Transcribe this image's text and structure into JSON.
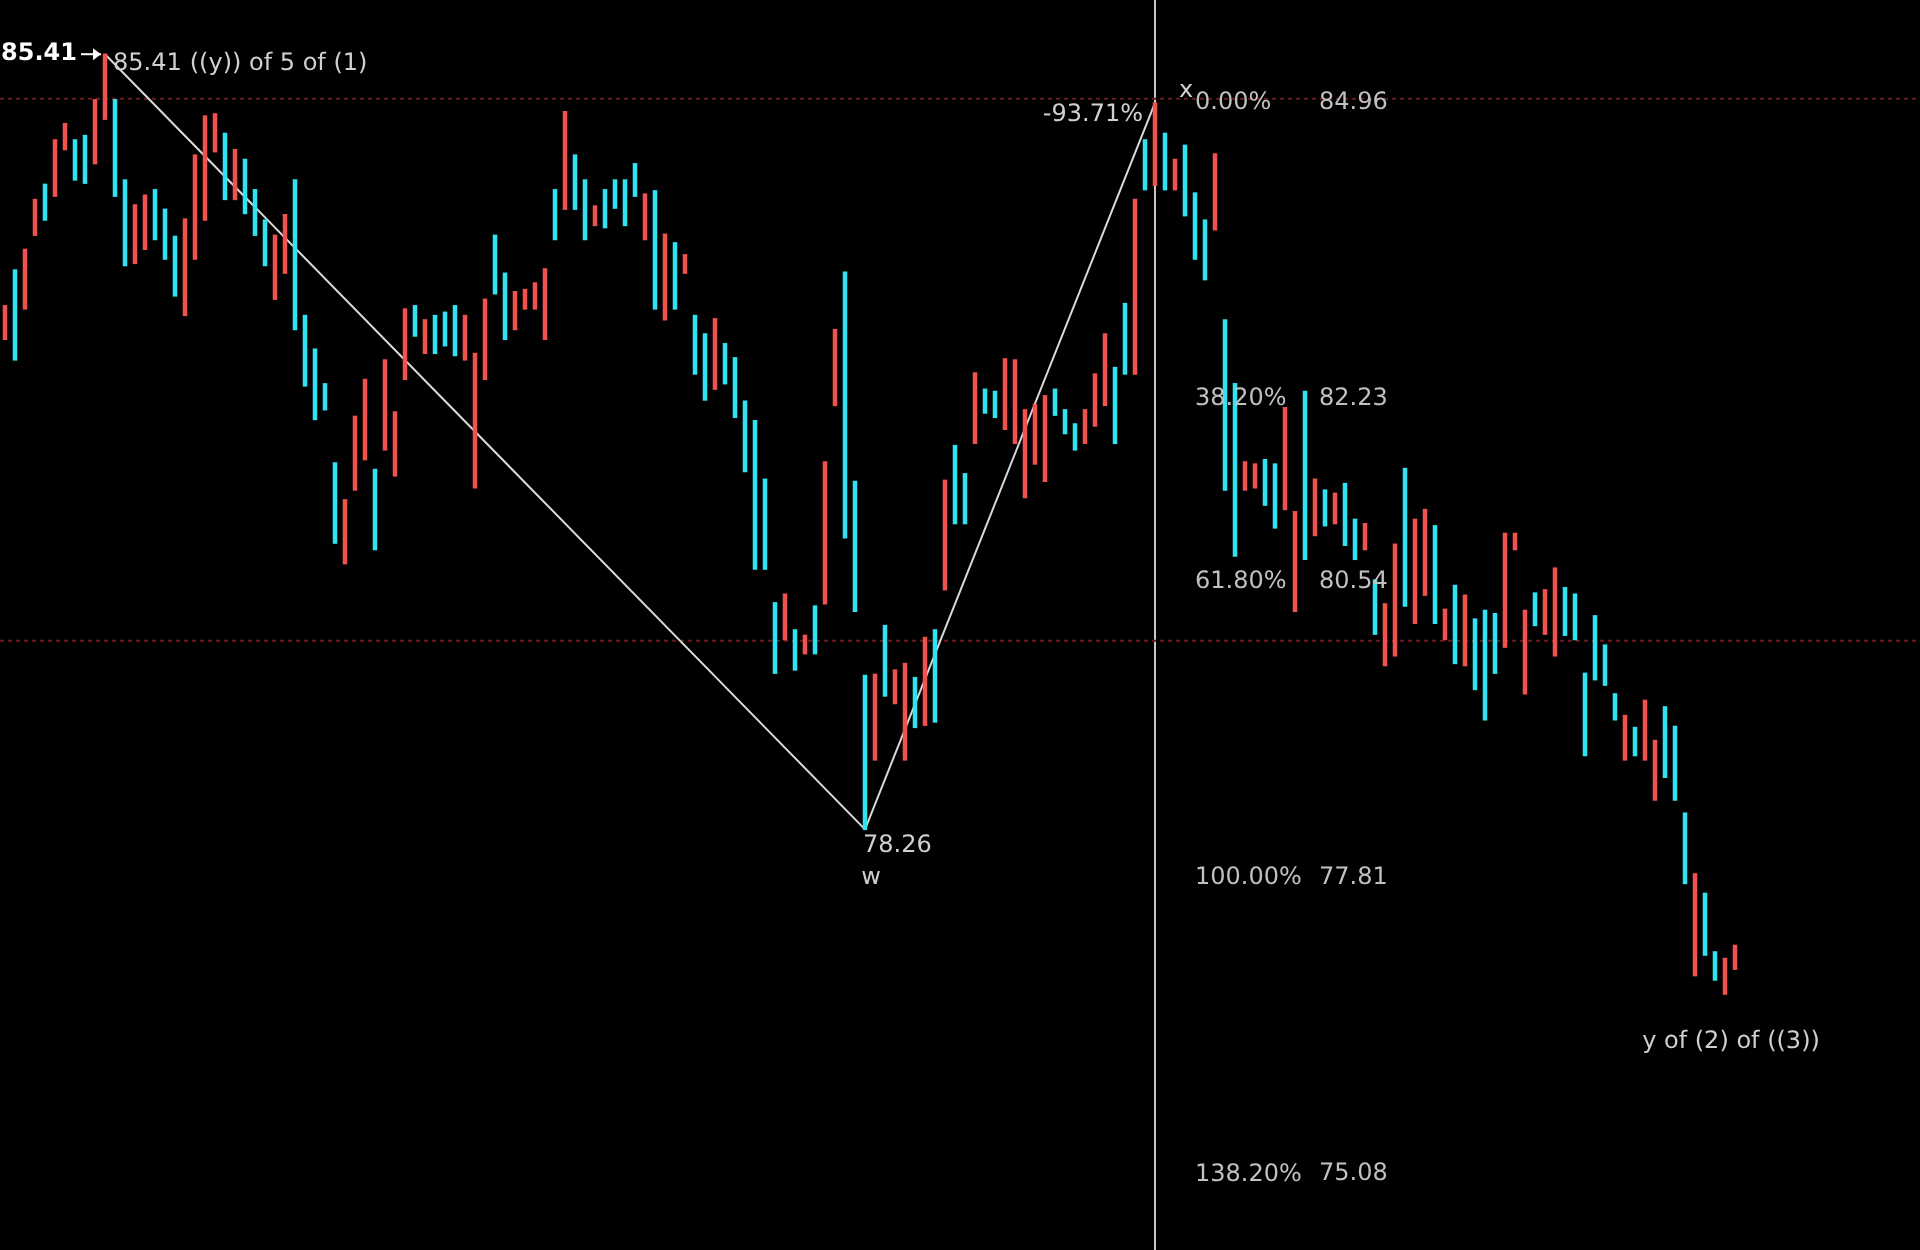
{
  "chart_data": {
    "type": "bar",
    "categories": [
      null,
      null,
      null,
      null,
      null,
      null,
      null,
      null,
      null,
      null,
      null,
      null,
      null,
      null,
      null,
      null,
      null,
      null,
      null,
      null,
      null,
      null,
      null,
      null,
      null,
      null,
      null,
      null,
      null,
      null,
      null,
      null,
      null,
      null,
      null,
      null,
      null,
      null,
      null,
      null,
      null,
      null,
      null,
      null,
      null,
      null,
      null,
      null,
      null,
      null,
      null,
      null,
      null,
      null,
      null,
      null,
      null,
      null,
      null,
      null,
      null,
      null,
      null,
      null,
      null,
      null,
      null,
      null,
      null,
      null,
      null,
      null,
      null,
      null,
      null,
      null,
      null,
      null,
      null,
      null,
      null,
      null,
      null,
      null,
      null,
      null,
      null,
      null,
      null,
      null,
      null,
      null,
      null,
      null,
      null,
      null,
      null,
      null,
      null,
      null,
      null,
      null,
      null,
      null,
      null,
      null,
      null,
      null,
      null,
      null,
      null,
      null,
      null,
      null,
      null,
      null,
      null,
      null,
      null,
      null,
      null,
      null,
      null,
      null,
      null,
      null,
      null,
      null,
      null,
      null,
      null,
      null,
      null,
      null,
      null,
      null,
      null,
      null,
      null,
      null,
      null,
      null,
      null,
      null,
      null,
      null,
      null,
      null,
      null,
      null,
      null,
      null,
      null,
      null,
      null,
      null,
      null,
      null,
      null,
      null,
      null,
      null,
      null,
      null,
      null,
      null,
      null,
      null,
      null,
      null,
      null,
      null,
      null,
      null,
      null,
      null,
      null,
      null,
      null,
      null,
      null,
      null,
      null,
      null,
      null,
      null,
      null,
      null,
      null,
      null,
      null,
      null
    ],
    "series": [
      {
        "base": [
          82.78,
          82.59,
          83.06,
          83.74,
          83.88,
          84.1,
          84.53,
          84.25,
          84.22,
          84.4,
          84.81,
          84.1,
          83.46,
          83.48,
          83.61,
          83.7,
          83.52,
          83.18,
          83.0,
          83.52,
          83.88,
          84.51,
          84.07,
          84.07,
          83.94,
          83.74,
          83.46,
          83.15,
          83.39,
          82.87,
          82.35,
          82.04,
          82.13,
          80.9,
          80.71,
          81.39,
          81.67,
          80.84,
          81.76,
          81.52,
          82.41,
          82.81,
          82.65,
          82.65,
          82.72,
          82.63,
          82.59,
          81.41,
          82.41,
          83.2,
          82.78,
          82.87,
          83.06,
          83.06,
          82.78,
          83.7,
          83.98,
          83.98,
          83.7,
          83.83,
          83.81,
          83.99,
          83.83,
          84.1,
          83.7,
          83.06,
          82.96,
          83.06,
          83.39,
          82.46,
          82.22,
          82.32,
          82.37,
          82.06,
          81.56,
          80.66,
          80.66,
          79.7,
          80.01,
          79.73,
          79.88,
          79.88,
          80.34,
          82.17,
          80.95,
          80.27,
          78.26,
          78.9,
          79.49,
          79.42,
          78.9,
          79.2,
          79.22,
          79.25,
          80.47,
          81.08,
          81.08,
          81.82,
          82.1,
          82.06,
          81.95,
          81.82,
          81.32,
          81.63,
          81.47,
          82.08,
          81.91,
          81.76,
          81.82,
          81.98,
          82.17,
          81.82,
          82.46,
          82.46,
          84.16,
          84.2,
          84.16,
          84.16,
          83.92,
          83.52,
          83.33,
          83.79,
          81.39,
          80.78,
          81.39,
          81.41,
          81.25,
          81.04,
          81.21,
          80.27,
          80.75,
          80.97,
          81.06,
          81.08,
          80.88,
          80.75,
          80.84,
          80.06,
          79.77,
          79.86,
          80.32,
          80.16,
          80.42,
          80.16,
          80.01,
          79.79,
          79.77,
          79.55,
          79.27,
          79.7,
          79.94,
          80.84,
          79.51,
          80.14,
          80.06,
          79.86,
          80.05,
          80.01,
          78.94,
          79.64,
          79.59,
          79.27,
          78.9,
          78.94,
          78.9,
          78.53,
          78.74,
          78.53,
          77.76,
          76.91,
          77.1,
          76.87,
          76.74,
          76.97,
          null,
          null,
          null,
          null,
          null,
          null,
          null,
          null,
          null,
          null,
          null,
          null,
          null,
          null,
          null,
          null,
          null,
          null
        ],
        "values": [
          0.31,
          0.83,
          0.55,
          0.33,
          0.33,
          0.52,
          0.24,
          0.37,
          0.44,
          0.59,
          0.6,
          0.89,
          0.79,
          0.54,
          0.5,
          0.46,
          0.46,
          0.55,
          0.89,
          0.96,
          0.96,
          0.35,
          0.61,
          0.46,
          0.5,
          0.42,
          0.42,
          0.59,
          0.54,
          1.38,
          0.65,
          0.65,
          0.24,
          0.74,
          0.59,
          0.68,
          0.74,
          0.74,
          0.83,
          0.59,
          0.65,
          0.28,
          0.31,
          0.35,
          0.31,
          0.46,
          0.41,
          1.24,
          0.74,
          0.54,
          0.61,
          0.35,
          0.18,
          0.24,
          0.65,
          0.46,
          0.9,
          0.5,
          0.55,
          0.18,
          0.35,
          0.26,
          0.42,
          0.3,
          0.42,
          1.09,
          0.79,
          0.61,
          0.17,
          0.54,
          0.61,
          0.65,
          0.37,
          0.55,
          0.65,
          1.37,
          0.83,
          0.65,
          0.42,
          0.37,
          0.17,
          0.44,
          1.31,
          0.7,
          2.45,
          1.2,
          1.42,
          0.79,
          0.65,
          0.31,
          0.89,
          0.46,
          0.81,
          0.85,
          1.01,
          0.72,
          0.46,
          0.65,
          0.22,
          0.24,
          0.65,
          0.77,
          0.81,
          0.55,
          0.79,
          0.24,
          0.22,
          0.24,
          0.31,
          0.48,
          0.66,
          0.7,
          0.65,
          1.61,
          0.46,
          0.76,
          0.52,
          0.28,
          0.65,
          0.61,
          0.55,
          0.7,
          1.57,
          1.59,
          0.26,
          0.22,
          0.42,
          0.59,
          0.94,
          0.92,
          1.55,
          0.52,
          0.33,
          0.28,
          0.57,
          0.37,
          0.24,
          0.5,
          0.57,
          1.03,
          1.27,
          0.96,
          0.79,
          0.9,
          0.28,
          0.72,
          0.65,
          0.65,
          1.01,
          0.55,
          1.05,
          0.15,
          0.77,
          0.3,
          0.41,
          0.81,
          0.44,
          0.42,
          0.76,
          0.59,
          0.37,
          0.24,
          0.41,
          0.26,
          0.55,
          0.55,
          0.65,
          0.68,
          0.65,
          0.94,
          0.57,
          0.26,
          0.33,
          0.22,
          null,
          null,
          null,
          null,
          null,
          null,
          null,
          null,
          null,
          null,
          null,
          null,
          null,
          null,
          null,
          null,
          null,
          null
        ],
        "colors": [
          "#f0524d",
          "#2fe3f2",
          "#f0524d",
          "#f0524d",
          "#2fe3f2",
          "#f0524d",
          "#f0524d",
          "#2fe3f2",
          "#2fe3f2",
          "#f0524d",
          "#f0524d",
          "#2fe3f2",
          "#2fe3f2",
          "#f0524d",
          "#f0524d",
          "#2fe3f2",
          "#2fe3f2",
          "#2fe3f2",
          "#f0524d",
          "#f0524d",
          "#f0524d",
          "#f0524d",
          "#2fe3f2",
          "#f0524d",
          "#2fe3f2",
          "#2fe3f2",
          "#2fe3f2",
          "#f0524d",
          "#f0524d",
          "#2fe3f2",
          "#2fe3f2",
          "#2fe3f2",
          "#2fe3f2",
          "#2fe3f2",
          "#f0524d",
          "#f0524d",
          "#f0524d",
          "#2fe3f2",
          "#f0524d",
          "#f0524d",
          "#f0524d",
          "#2fe3f2",
          "#f0524d",
          "#2fe3f2",
          "#2fe3f2",
          "#2fe3f2",
          "#f0524d",
          "#f0524d",
          "#f0524d",
          "#2fe3f2",
          "#2fe3f2",
          "#f0524d",
          "#f0524d",
          "#f0524d",
          "#f0524d",
          "#2fe3f2",
          "#f0524d",
          "#2fe3f2",
          "#2fe3f2",
          "#f0524d",
          "#2fe3f2",
          "#2fe3f2",
          "#2fe3f2",
          "#2fe3f2",
          "#f0524d",
          "#2fe3f2",
          "#f0524d",
          "#2fe3f2",
          "#f0524d",
          "#2fe3f2",
          "#2fe3f2",
          "#f0524d",
          "#2fe3f2",
          "#2fe3f2",
          "#2fe3f2",
          "#2fe3f2",
          "#2fe3f2",
          "#2fe3f2",
          "#f0524d",
          "#2fe3f2",
          "#f0524d",
          "#2fe3f2",
          "#f0524d",
          "#f0524d",
          "#2fe3f2",
          "#2fe3f2",
          "#2fe3f2",
          "#f0524d",
          "#2fe3f2",
          "#f0524d",
          "#f0524d",
          "#2fe3f2",
          "#f0524d",
          "#2fe3f2",
          "#f0524d",
          "#2fe3f2",
          "#2fe3f2",
          "#f0524d",
          "#2fe3f2",
          "#2fe3f2",
          "#f0524d",
          "#f0524d",
          "#f0524d",
          "#f0524d",
          "#f0524d",
          "#2fe3f2",
          "#2fe3f2",
          "#2fe3f2",
          "#f0524d",
          "#f0524d",
          "#f0524d",
          "#2fe3f2",
          "#2fe3f2",
          "#f0524d",
          "#2fe3f2",
          "#f0524d",
          "#2fe3f2",
          "#f0524d",
          "#2fe3f2",
          "#2fe3f2",
          "#2fe3f2",
          "#f0524d",
          "#2fe3f2",
          "#2fe3f2",
          "#f0524d",
          "#f0524d",
          "#2fe3f2",
          "#2fe3f2",
          "#f0524d",
          "#f0524d",
          "#2fe3f2",
          "#f0524d",
          "#2fe3f2",
          "#f0524d",
          "#2fe3f2",
          "#2fe3f2",
          "#f0524d",
          "#2fe3f2",
          "#f0524d",
          "#f0524d",
          "#2fe3f2",
          "#f0524d",
          "#f0524d",
          "#2fe3f2",
          "#f0524d",
          "#2fe3f2",
          "#f0524d",
          "#2fe3f2",
          "#2fe3f2",
          "#2fe3f2",
          "#f0524d",
          "#f0524d",
          "#f0524d",
          "#2fe3f2",
          "#f0524d",
          "#f0524d",
          "#2fe3f2",
          "#2fe3f2",
          "#2fe3f2",
          "#2fe3f2",
          "#2fe3f2",
          "#2fe3f2",
          "#f0524d",
          "#2fe3f2",
          "#f0524d",
          "#f0524d",
          "#2fe3f2",
          "#2fe3f2",
          "#2fe3f2",
          "#f0524d",
          "#2fe3f2",
          "#2fe3f2",
          "#f0524d",
          "#f0524d",
          null,
          null,
          null,
          null,
          null,
          null,
          null,
          null,
          null,
          null,
          null,
          null,
          null,
          null,
          null,
          null,
          null,
          null
        ]
      },
      {
        "type": "line",
        "color": "#d9d9d9",
        "values": [
          null,
          null,
          null,
          null,
          null,
          null,
          null,
          null,
          null,
          null,
          85.41,
          null,
          null,
          null,
          null,
          null,
          null,
          null,
          null,
          null,
          null,
          null,
          null,
          null,
          null,
          null,
          null,
          null,
          null,
          null,
          null,
          null,
          null,
          null,
          null,
          null,
          null,
          null,
          null,
          null,
          null,
          null,
          null,
          null,
          null,
          null,
          null,
          null,
          null,
          null,
          null,
          null,
          null,
          null,
          null,
          null,
          null,
          null,
          null,
          null,
          null,
          null,
          null,
          null,
          null,
          null,
          null,
          null,
          null,
          null,
          null,
          null,
          null,
          null,
          null,
          null,
          null,
          null,
          null,
          null,
          null,
          null,
          null,
          null,
          null,
          null,
          78.26,
          null,
          null,
          null,
          null,
          null,
          null,
          null,
          null,
          null,
          null,
          null,
          null,
          null,
          null,
          null,
          null,
          null,
          null,
          null,
          null,
          null,
          null,
          null,
          null,
          null,
          null,
          null,
          null,
          84.96,
          null,
          null,
          null,
          null,
          null,
          null,
          null,
          null,
          null,
          null,
          null,
          null,
          null,
          null,
          null,
          null,
          null,
          null,
          null,
          null,
          null,
          null,
          null,
          null,
          null,
          null,
          null,
          null,
          null,
          null,
          null,
          null,
          null,
          null,
          null,
          null,
          null,
          null,
          null,
          null,
          null,
          null,
          null,
          null,
          null,
          null,
          null,
          null,
          null,
          null,
          null,
          null,
          null,
          null,
          null,
          null,
          null,
          null,
          null,
          null,
          null,
          null,
          null,
          null,
          null,
          null,
          null,
          null,
          null,
          null,
          null,
          null,
          null,
          null,
          null,
          null
        ],
        "value_labels": [
          null,
          null,
          null,
          null,
          null,
          null,
          null,
          null,
          null,
          null,
          "85.41",
          null,
          null,
          null,
          null,
          null,
          null,
          null,
          null,
          null,
          null,
          null,
          null,
          null,
          null,
          null,
          null,
          null,
          null,
          null,
          null,
          null,
          null,
          null,
          null,
          null,
          null,
          null,
          null,
          null,
          null,
          null,
          null,
          null,
          null,
          null,
          null,
          null,
          null,
          null,
          null,
          null,
          null,
          null,
          null,
          null,
          null,
          null,
          null,
          null,
          null,
          null,
          null,
          null,
          null,
          null,
          null,
          null,
          null,
          null,
          null,
          null,
          null,
          null,
          null,
          null,
          null,
          null,
          null,
          null,
          null,
          null,
          null,
          null,
          null,
          null,
          "78.26",
          null,
          null,
          null,
          null,
          null,
          null,
          null,
          null,
          null,
          null,
          null,
          null,
          null,
          null,
          null,
          null,
          null,
          null,
          null,
          null,
          null,
          null,
          null,
          null,
          null,
          null,
          null,
          null,
          null,
          null,
          null,
          null,
          null,
          null,
          null,
          null,
          null,
          null,
          null,
          null,
          null,
          null,
          null,
          null,
          null,
          null,
          null,
          null,
          null,
          null,
          null,
          null,
          null,
          null,
          null,
          null,
          null,
          null,
          null,
          null,
          null,
          null,
          null,
          null,
          null,
          null,
          null,
          null,
          null,
          null,
          null,
          null,
          null,
          null,
          null,
          null,
          null,
          null,
          null,
          null,
          null,
          null,
          null,
          null,
          null,
          null,
          null,
          null,
          null,
          null,
          null,
          null,
          null,
          null,
          null,
          null,
          null,
          null,
          null,
          null,
          null,
          null,
          null,
          null,
          null
        ]
      }
    ],
    "ylim": [
      74.38,
      85.91
    ],
    "yticks": [
      84.96,
      82.23,
      80.54,
      77.81,
      75.08
    ],
    "y2lim": [
      147.97,
      -13.29
    ],
    "y2ticks": [
      {
        "value": 0,
        "label": "0.00%"
      },
      {
        "value": 38.2,
        "label": "38.20%"
      },
      {
        "value": 61.8,
        "label": "61.80%"
      },
      {
        "value": 100,
        "label": "100.00%"
      },
      {
        "value": 138.2,
        "label": "138.20%"
      }
    ],
    "legend": false,
    "ref_lines": [
      {
        "axis": "y",
        "value": 85,
        "color": "#6a1a1a",
        "line_style": "dotted"
      },
      {
        "axis": "y",
        "value": 80,
        "color": "#6a1a1a",
        "line_style": "dotted"
      }
    ],
    "annotations": [
      "85.41",
      "((y)) of 5 of (1)",
      {
        "text": "w",
        "y": 78.26
      },
      {
        "text": "x",
        "y": 84.96
      },
      {
        "text": "-93.71%",
        "y": 84.96
      },
      {
        "text": "y of (2) of ((3))",
        "y": 76.74
      }
    ]
  }
}
